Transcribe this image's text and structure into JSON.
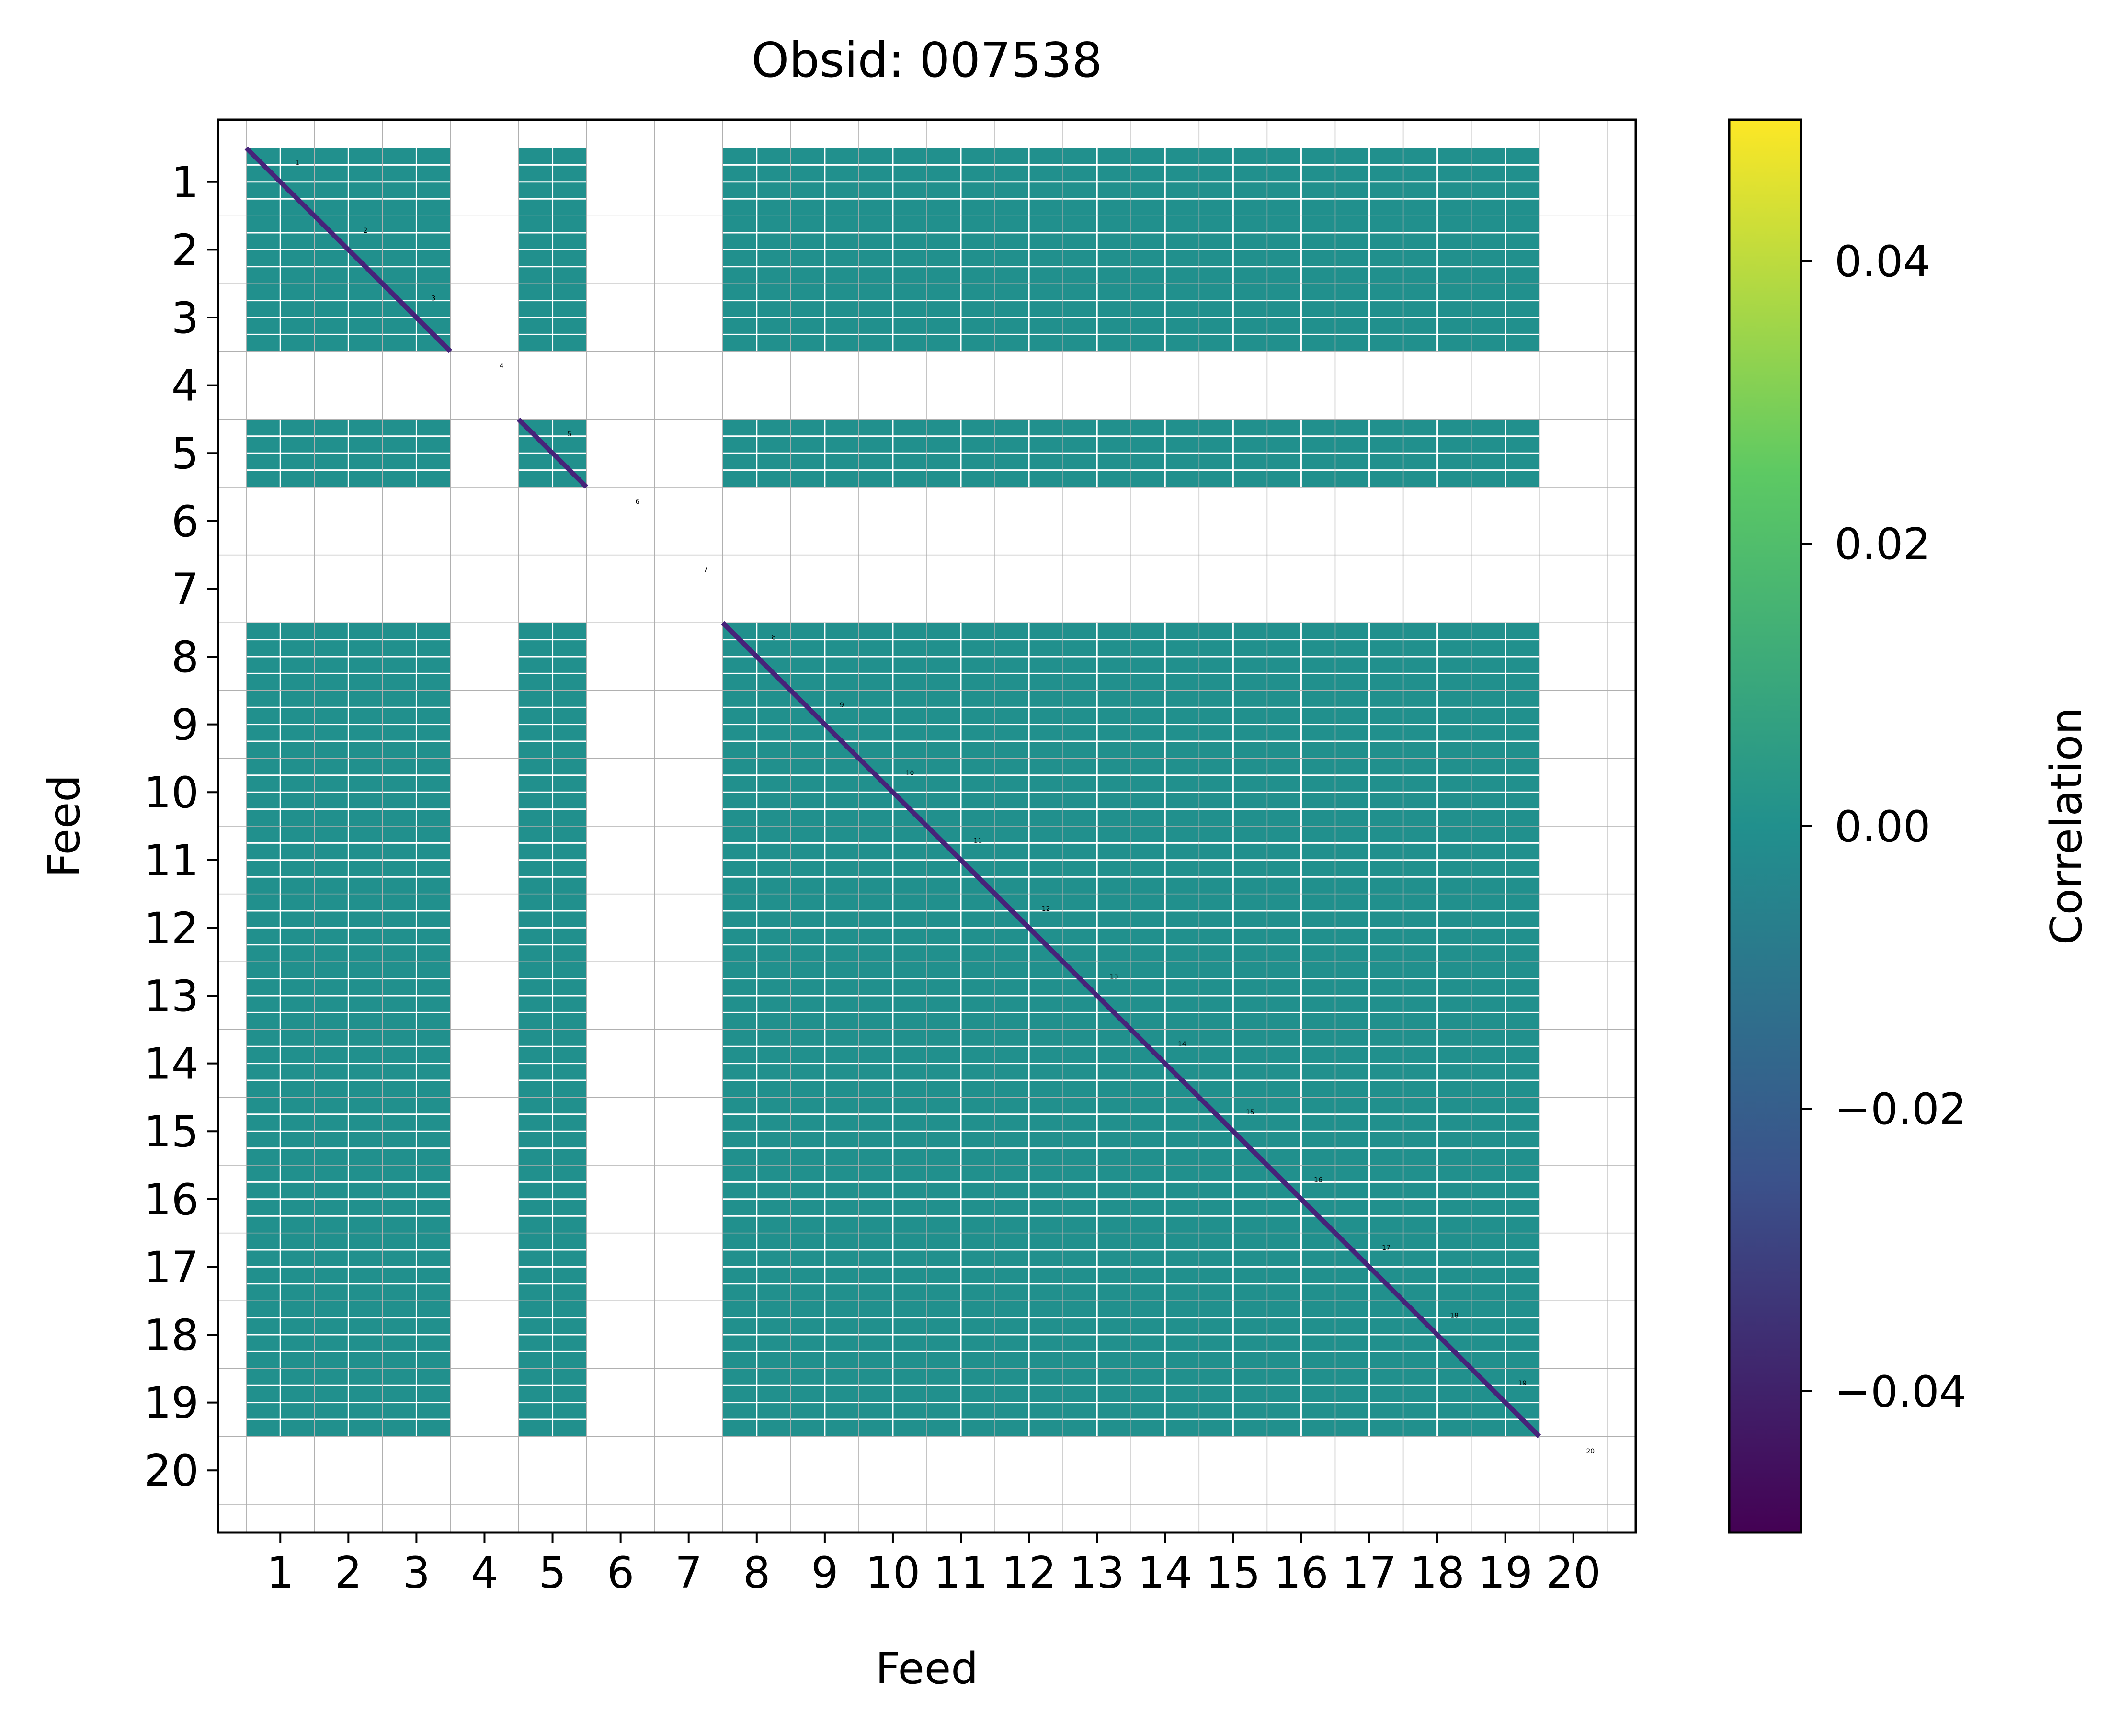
{
  "chart_data": {
    "type": "heatmap",
    "title": "Obsid: 007538",
    "xlabel": "Feed",
    "ylabel": "Feed",
    "feeds": [
      1,
      2,
      3,
      4,
      5,
      6,
      7,
      8,
      9,
      10,
      11,
      12,
      13,
      14,
      15,
      16,
      17,
      18,
      19,
      20
    ],
    "x_tick_labels": [
      "1",
      "2",
      "3",
      "4",
      "5",
      "6",
      "7",
      "8",
      "9",
      "10",
      "11",
      "12",
      "13",
      "14",
      "15",
      "16",
      "17",
      "18",
      "19",
      "20"
    ],
    "y_tick_labels": [
      "1",
      "2",
      "3",
      "4",
      "5",
      "6",
      "7",
      "8",
      "9",
      "10",
      "11",
      "12",
      "13",
      "14",
      "15",
      "16",
      "17",
      "18",
      "19",
      "20"
    ],
    "diagonal_labels": [
      "1",
      "2",
      "3",
      "4",
      "5",
      "6",
      "7",
      "8",
      "9",
      "10",
      "11",
      "12",
      "13",
      "14",
      "15",
      "16",
      "17",
      "18",
      "19",
      "20"
    ],
    "masked_feeds": [
      4,
      6,
      7,
      20
    ],
    "off_diagonal_value": 0.0,
    "diagonal_value": -0.05,
    "colorbar": {
      "label": "Correlation",
      "vmin": -0.05,
      "vmax": 0.05,
      "ticks": [
        -0.04,
        -0.02,
        0.0,
        0.02,
        0.04
      ],
      "tick_labels": [
        "−0.04",
        "−0.02",
        "0.00",
        "0.02",
        "0.04"
      ],
      "colormap": "viridis",
      "colors": [
        "#440154",
        "#3b528b",
        "#21908d",
        "#5dc963",
        "#fde725"
      ]
    },
    "cell_color": "#21908d",
    "diagonal_color": "#46237a",
    "masked_color": "#ffffff"
  }
}
